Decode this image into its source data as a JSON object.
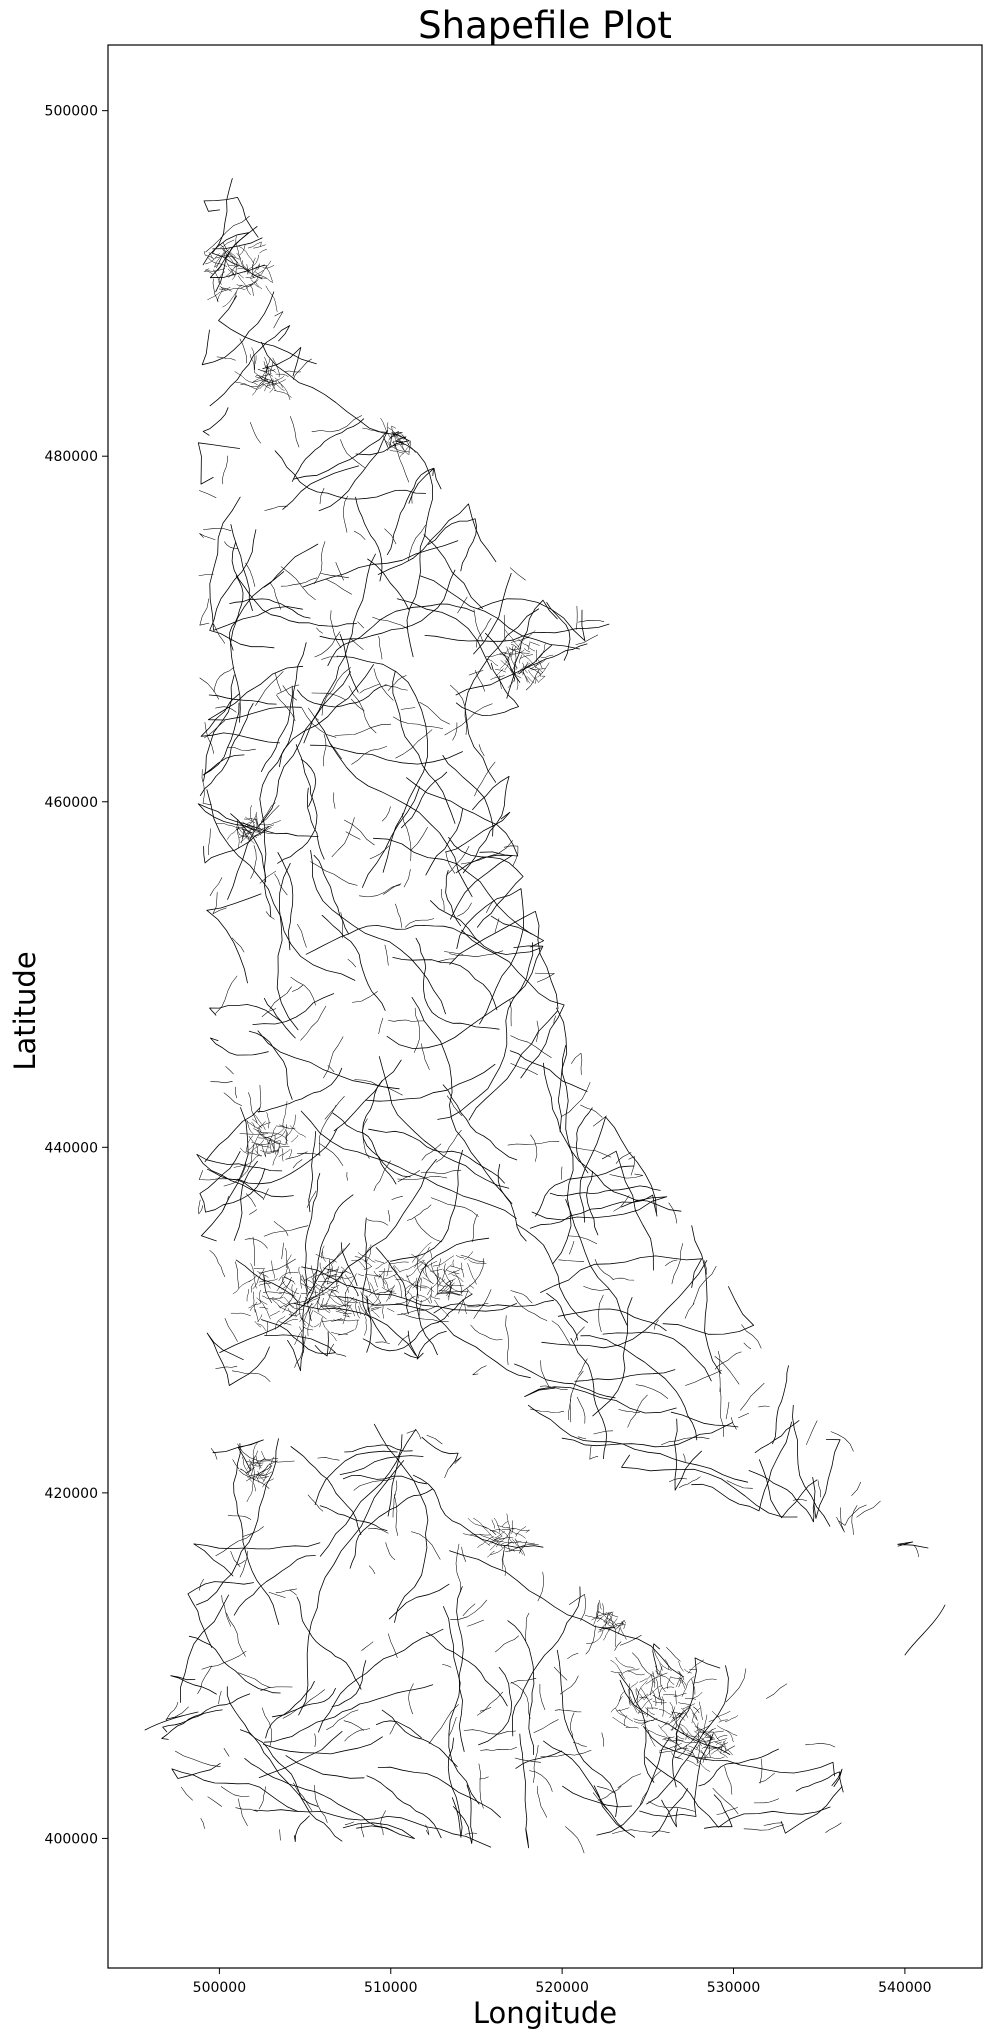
{
  "chart_data": {
    "type": "map",
    "title": "Shapefile Plot",
    "xlabel": "Longitude",
    "ylabel": "Latitude",
    "xlim": [
      493500,
      544500
    ],
    "ylim": [
      392500,
      503800
    ],
    "x_ticks": [
      500000,
      510000,
      520000,
      530000,
      540000
    ],
    "x_tick_labels": [
      "500000",
      "510000",
      "520000",
      "530000",
      "540000"
    ],
    "y_ticks": [
      400000,
      420000,
      440000,
      460000,
      480000,
      500000
    ],
    "y_tick_labels": [
      "400000",
      "420000",
      "440000",
      "460000",
      "480000",
      "500000"
    ],
    "line_color": "#000000",
    "background": "#ffffff",
    "grid": false,
    "legend": "none"
  }
}
